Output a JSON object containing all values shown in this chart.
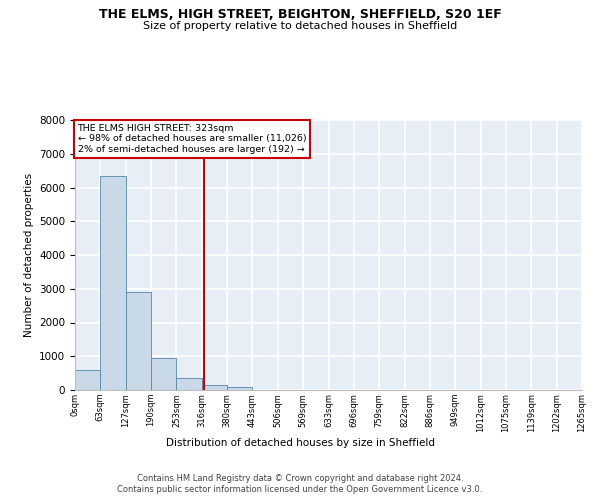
{
  "title_line1": "THE ELMS, HIGH STREET, BEIGHTON, SHEFFIELD, S20 1EF",
  "title_line2": "Size of property relative to detached houses in Sheffield",
  "xlabel": "Distribution of detached houses by size in Sheffield",
  "ylabel": "Number of detached properties",
  "bar_values": [
    600,
    6350,
    2900,
    960,
    370,
    150,
    80,
    0,
    0,
    0,
    0,
    0,
    0,
    0,
    0,
    0,
    0,
    0,
    0,
    0
  ],
  "bar_labels": [
    "0sqm",
    "63sqm",
    "127sqm",
    "190sqm",
    "253sqm",
    "316sqm",
    "380sqm",
    "443sqm",
    "506sqm",
    "569sqm",
    "633sqm",
    "696sqm",
    "759sqm",
    "822sqm",
    "886sqm",
    "949sqm",
    "1012sqm",
    "1075sqm",
    "1139sqm",
    "1202sqm",
    "1265sqm"
  ],
  "bar_color": "#c9d9e8",
  "bar_edge_color": "#5588aa",
  "background_color": "#e8eef5",
  "grid_color": "#ffffff",
  "annotation_text": "THE ELMS HIGH STREET: 323sqm\n← 98% of detached houses are smaller (11,026)\n2% of semi-detached houses are larger (192) →",
  "vline_color": "#cc0000",
  "annotation_box_color": "#cc0000",
  "ylim": [
    0,
    8000
  ],
  "footer_line1": "Contains HM Land Registry data © Crown copyright and database right 2024.",
  "footer_line2": "Contains public sector information licensed under the Open Government Licence v3.0."
}
